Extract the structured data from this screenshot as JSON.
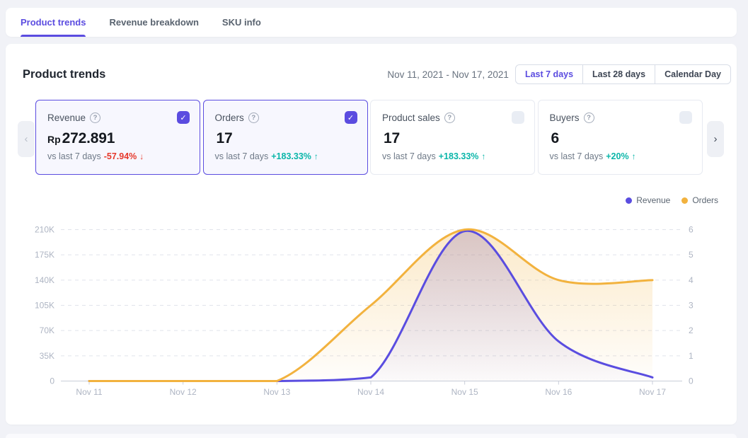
{
  "tab_bar": {
    "tabs": [
      {
        "label": "Product trends",
        "active": true
      },
      {
        "label": "Revenue breakdown",
        "active": false
      },
      {
        "label": "SKU info",
        "active": false
      }
    ]
  },
  "header": {
    "title": "Product trends",
    "date_range": "Nov 11, 2021 - Nov 17, 2021",
    "range_options": [
      {
        "label": "Last 7 days",
        "active": true
      },
      {
        "label": "Last 28 days",
        "active": false
      },
      {
        "label": "Calendar Day",
        "active": false
      }
    ]
  },
  "metric_cards": [
    {
      "label": "Revenue",
      "help_icon": "?",
      "value_prefix": "Rp",
      "value": "272.891",
      "compare_label": "vs last 7 days",
      "delta": "-57.94%",
      "delta_arrow": "↓",
      "delta_dir": "down",
      "selected": true
    },
    {
      "label": "Orders",
      "help_icon": "?",
      "value_prefix": "",
      "value": "17",
      "compare_label": "vs last 7 days",
      "delta": "+183.33%",
      "delta_arrow": "↑",
      "delta_dir": "up",
      "selected": true
    },
    {
      "label": "Product sales",
      "help_icon": "?",
      "value_prefix": "",
      "value": "17",
      "compare_label": "vs last 7 days",
      "delta": "+183.33%",
      "delta_arrow": "↑",
      "delta_dir": "up",
      "selected": false
    },
    {
      "label": "Buyers",
      "help_icon": "?",
      "value_prefix": "",
      "value": "6",
      "compare_label": "vs last 7 days",
      "delta": "+20%",
      "delta_arrow": "↑",
      "delta_dir": "up",
      "selected": false
    }
  ],
  "carousel": {
    "left_arrow": "‹",
    "right_arrow": "›"
  },
  "controls": {
    "check_glyph": "✓"
  },
  "legend": [
    {
      "label": "Revenue",
      "color": "#5a4de0"
    },
    {
      "label": "Orders",
      "color": "#f2b23e"
    }
  ],
  "chart_data": {
    "type": "line",
    "x": [
      "Nov 11",
      "Nov 12",
      "Nov 13",
      "Nov 14",
      "Nov 15",
      "Nov 16",
      "Nov 17"
    ],
    "series": [
      {
        "name": "Revenue",
        "yaxis": "left",
        "color": "#5a4de0",
        "smooth": true,
        "area": true,
        "values": [
          0,
          0,
          0,
          5000,
          207891,
          55000,
          5000
        ]
      },
      {
        "name": "Orders",
        "yaxis": "right",
        "color": "#f2b23e",
        "smooth": true,
        "area": true,
        "values": [
          0,
          0,
          0,
          3,
          6,
          4,
          4
        ]
      }
    ],
    "left_axis": {
      "label_ticks": [
        "210K",
        "175K",
        "140K",
        "105K",
        "70K",
        "35K",
        "0"
      ],
      "min": 0,
      "max": 210000
    },
    "right_axis": {
      "label_ticks": [
        "6",
        "5",
        "4",
        "3",
        "2",
        "1",
        "0"
      ],
      "min": 0,
      "max": 6
    },
    "grid": {
      "horizontal_dashed": true
    },
    "legend_position": "top-right"
  },
  "colors": {
    "accent": "#5b4ce0",
    "positive": "#0ab6a9",
    "negative": "#e6392c",
    "page_bg": "#f1f2f7",
    "axis_label": "#aeb5c3",
    "gridline": "#e0e3eb",
    "axis_line": "#c9ced9"
  }
}
